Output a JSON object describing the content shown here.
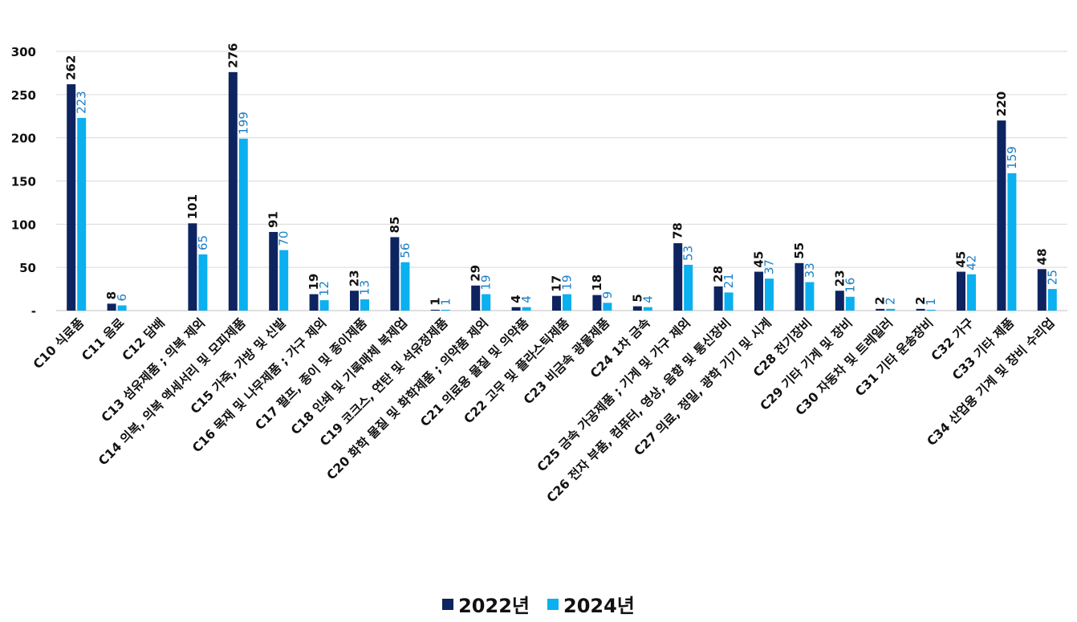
{
  "chart_data": {
    "type": "bar",
    "title": "",
    "xlabel": "",
    "ylabel": "",
    "ylim": [
      0,
      300
    ],
    "yticks": [
      0,
      50,
      100,
      150,
      200,
      250,
      300
    ],
    "ytick_labels": [
      "-",
      "50",
      "100",
      "150",
      "200",
      "250",
      "300"
    ],
    "grid": true,
    "legend_position": "bottom",
    "categories": [
      "C10 식료품",
      "C11 음료",
      "C12 담배",
      "C13 섬유제품 ; 의복 제외",
      "C14 의복, 의복 액세서리 및 모피제품",
      "C15 가죽, 가방 및 신발",
      "C16 목재 및 나무제품 ; 가구 제외",
      "C17 펄프, 종이 및 종이제품",
      "C18 인쇄 및 기록매체 복제업",
      "C19 코크스, 연탄 및 석유정제품",
      "C20 화학 물질 및 화학제품 ; 의약품 제외",
      "C21 의료용 물질 및 의약품",
      "C22 고무 및 플라스틱제품",
      "C23 비금속 광물제품",
      "C24 1차 금속",
      "C25 금속 가공제품 ; 기계 및 가구 제외",
      "C26 전자 부품, 컴퓨터, 영상, 음향 및 통신장비",
      "C27 의료, 정밀, 광학 기기 및 시계",
      "C28 전기장비",
      "C29 기타 기계 및 장비",
      "C30 자동차 및 트레일러",
      "C31 기타 운송장비",
      "C32 가구",
      "C33 기타 제품",
      "C34 산업용 기계 및 장비 수리업"
    ],
    "series": [
      {
        "name": "2022년",
        "color": "#0d2460",
        "label_color": "#111111",
        "values": [
          262,
          8,
          null,
          101,
          276,
          91,
          19,
          23,
          85,
          1,
          29,
          4,
          17,
          18,
          5,
          78,
          28,
          45,
          55,
          23,
          2,
          2,
          45,
          220,
          48
        ]
      },
      {
        "name": "2024년",
        "color": "#0ab0f0",
        "label_color": "#1a7fc4",
        "values": [
          223,
          6,
          null,
          65,
          199,
          70,
          12,
          13,
          56,
          1,
          19,
          4,
          19,
          9,
          4,
          53,
          21,
          37,
          33,
          16,
          2,
          1,
          42,
          159,
          25
        ]
      }
    ]
  }
}
